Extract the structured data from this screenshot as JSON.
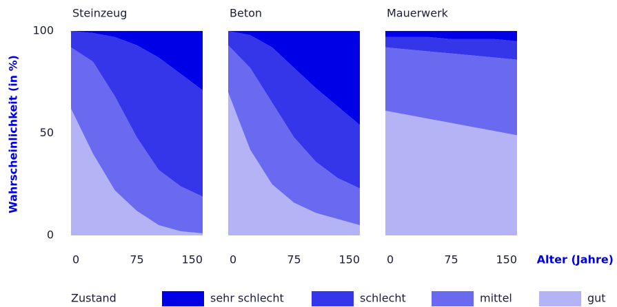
{
  "y_label": "Wahrscheinlichkeit (in %)",
  "x_label": "Alter (Jahre)",
  "legend_title": "Zustand",
  "chart_data": [
    {
      "type": "area",
      "stacked": true,
      "title": "Steinzeug",
      "x": [
        0,
        25,
        50,
        75,
        100,
        125,
        150
      ],
      "xlim": [
        0,
        150
      ],
      "xticks": [
        0,
        75,
        150
      ],
      "ylim": [
        0,
        100
      ],
      "yticks": [
        0,
        50,
        100
      ],
      "series": [
        {
          "name": "gut",
          "color": "#b3b3f5",
          "values": [
            62,
            40,
            22,
            12,
            5,
            2,
            1
          ]
        },
        {
          "name": "mittel",
          "color": "#6a6af0",
          "values": [
            30,
            45,
            46,
            36,
            27,
            22,
            18
          ]
        },
        {
          "name": "schlecht",
          "color": "#3535ea",
          "values": [
            8,
            14,
            29,
            45,
            55,
            55,
            52
          ]
        },
        {
          "name": "sehr schlecht",
          "color": "#0000e6",
          "values": [
            0,
            1,
            3,
            7,
            13,
            21,
            29
          ]
        }
      ]
    },
    {
      "type": "area",
      "stacked": true,
      "title": "Beton",
      "x": [
        0,
        25,
        50,
        75,
        100,
        125,
        150
      ],
      "xlim": [
        0,
        150
      ],
      "xticks": [
        0,
        75,
        150
      ],
      "ylim": [
        0,
        100
      ],
      "series": [
        {
          "name": "gut",
          "color": "#b3b3f5",
          "values": [
            70,
            42,
            25,
            16,
            11,
            8,
            5
          ]
        },
        {
          "name": "mittel",
          "color": "#6a6af0",
          "values": [
            23,
            40,
            40,
            32,
            25,
            20,
            18
          ]
        },
        {
          "name": "schlecht",
          "color": "#3535ea",
          "values": [
            7,
            16,
            27,
            34,
            36,
            35,
            31
          ]
        },
        {
          "name": "sehr schlecht",
          "color": "#0000e6",
          "values": [
            0,
            2,
            8,
            18,
            28,
            37,
            46
          ]
        }
      ]
    },
    {
      "type": "area",
      "stacked": true,
      "title": "Mauerwerk",
      "x": [
        0,
        25,
        50,
        75,
        100,
        125,
        150
      ],
      "xlim": [
        0,
        150
      ],
      "xticks": [
        0,
        75,
        150
      ],
      "ylim": [
        0,
        100
      ],
      "series": [
        {
          "name": "gut",
          "color": "#b3b3f5",
          "values": [
            61,
            59,
            57,
            55,
            53,
            51,
            49
          ]
        },
        {
          "name": "mittel",
          "color": "#6a6af0",
          "values": [
            31,
            32,
            33,
            34,
            35,
            36,
            37
          ]
        },
        {
          "name": "schlecht",
          "color": "#3535ea",
          "values": [
            5,
            6,
            7,
            7,
            8,
            9,
            9
          ]
        },
        {
          "name": "sehr schlecht",
          "color": "#0000e6",
          "values": [
            3,
            3,
            3,
            4,
            4,
            4,
            5
          ]
        }
      ]
    }
  ]
}
